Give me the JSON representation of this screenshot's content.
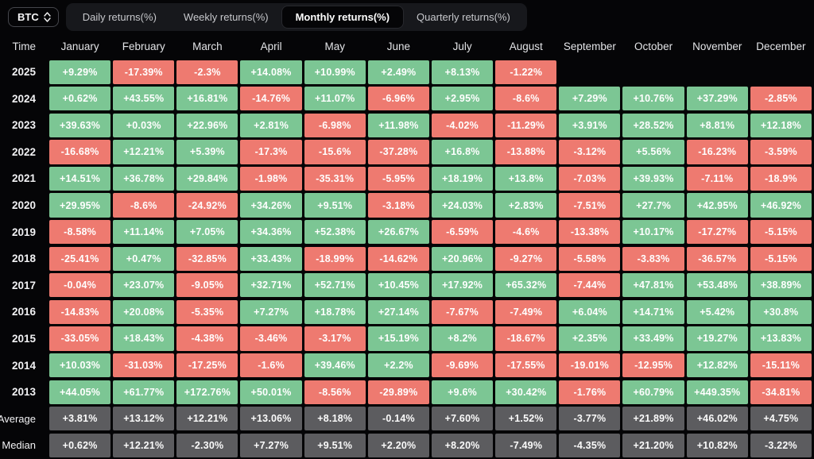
{
  "toolbar": {
    "symbol": "BTC",
    "tabs": [
      {
        "label": "Daily returns(%)",
        "active": false
      },
      {
        "label": "Weekly returns(%)",
        "active": false
      },
      {
        "label": "Monthly returns(%)",
        "active": true
      },
      {
        "label": "Quarterly returns(%)",
        "active": false
      }
    ]
  },
  "colors": {
    "positive": "#7cc694",
    "negative": "#ee7a70",
    "summary": "#5c5c5f"
  },
  "table": {
    "time_header": "Time",
    "months": [
      "January",
      "February",
      "March",
      "April",
      "May",
      "June",
      "July",
      "August",
      "September",
      "October",
      "November",
      "December"
    ],
    "rows": [
      {
        "label": "2025",
        "type": "year",
        "values": [
          "+9.29%",
          "-17.39%",
          "-2.3%",
          "+14.08%",
          "+10.99%",
          "+2.49%",
          "+8.13%",
          "-1.22%",
          "",
          "",
          "",
          ""
        ]
      },
      {
        "label": "2024",
        "type": "year",
        "values": [
          "+0.62%",
          "+43.55%",
          "+16.81%",
          "-14.76%",
          "+11.07%",
          "-6.96%",
          "+2.95%",
          "-8.6%",
          "+7.29%",
          "+10.76%",
          "+37.29%",
          "-2.85%"
        ]
      },
      {
        "label": "2023",
        "type": "year",
        "values": [
          "+39.63%",
          "+0.03%",
          "+22.96%",
          "+2.81%",
          "-6.98%",
          "+11.98%",
          "-4.02%",
          "-11.29%",
          "+3.91%",
          "+28.52%",
          "+8.81%",
          "+12.18%"
        ]
      },
      {
        "label": "2022",
        "type": "year",
        "values": [
          "-16.68%",
          "+12.21%",
          "+5.39%",
          "-17.3%",
          "-15.6%",
          "-37.28%",
          "+16.8%",
          "-13.88%",
          "-3.12%",
          "+5.56%",
          "-16.23%",
          "-3.59%"
        ]
      },
      {
        "label": "2021",
        "type": "year",
        "values": [
          "+14.51%",
          "+36.78%",
          "+29.84%",
          "-1.98%",
          "-35.31%",
          "-5.95%",
          "+18.19%",
          "+13.8%",
          "-7.03%",
          "+39.93%",
          "-7.11%",
          "-18.9%"
        ]
      },
      {
        "label": "2020",
        "type": "year",
        "values": [
          "+29.95%",
          "-8.6%",
          "-24.92%",
          "+34.26%",
          "+9.51%",
          "-3.18%",
          "+24.03%",
          "+2.83%",
          "-7.51%",
          "+27.7%",
          "+42.95%",
          "+46.92%"
        ]
      },
      {
        "label": "2019",
        "type": "year",
        "values": [
          "-8.58%",
          "+11.14%",
          "+7.05%",
          "+34.36%",
          "+52.38%",
          "+26.67%",
          "-6.59%",
          "-4.6%",
          "-13.38%",
          "+10.17%",
          "-17.27%",
          "-5.15%"
        ]
      },
      {
        "label": "2018",
        "type": "year",
        "values": [
          "-25.41%",
          "+0.47%",
          "-32.85%",
          "+33.43%",
          "-18.99%",
          "-14.62%",
          "+20.96%",
          "-9.27%",
          "-5.58%",
          "-3.83%",
          "-36.57%",
          "-5.15%"
        ]
      },
      {
        "label": "2017",
        "type": "year",
        "values": [
          "-0.04%",
          "+23.07%",
          "-9.05%",
          "+32.71%",
          "+52.71%",
          "+10.45%",
          "+17.92%",
          "+65.32%",
          "-7.44%",
          "+47.81%",
          "+53.48%",
          "+38.89%"
        ]
      },
      {
        "label": "2016",
        "type": "year",
        "values": [
          "-14.83%",
          "+20.08%",
          "-5.35%",
          "+7.27%",
          "+18.78%",
          "+27.14%",
          "-7.67%",
          "-7.49%",
          "+6.04%",
          "+14.71%",
          "+5.42%",
          "+30.8%"
        ]
      },
      {
        "label": "2015",
        "type": "year",
        "values": [
          "-33.05%",
          "+18.43%",
          "-4.38%",
          "-3.46%",
          "-3.17%",
          "+15.19%",
          "+8.2%",
          "-18.67%",
          "+2.35%",
          "+33.49%",
          "+19.27%",
          "+13.83%"
        ]
      },
      {
        "label": "2014",
        "type": "year",
        "values": [
          "+10.03%",
          "-31.03%",
          "-17.25%",
          "-1.6%",
          "+39.46%",
          "+2.2%",
          "-9.69%",
          "-17.55%",
          "-19.01%",
          "-12.95%",
          "+12.82%",
          "-15.11%"
        ]
      },
      {
        "label": "2013",
        "type": "year",
        "values": [
          "+44.05%",
          "+61.77%",
          "+172.76%",
          "+50.01%",
          "-8.56%",
          "-29.89%",
          "+9.6%",
          "+30.42%",
          "-1.76%",
          "+60.79%",
          "+449.35%",
          "-34.81%"
        ]
      },
      {
        "label": "Average",
        "type": "summary",
        "values": [
          "+3.81%",
          "+13.12%",
          "+12.21%",
          "+13.06%",
          "+8.18%",
          "-0.14%",
          "+7.60%",
          "+1.52%",
          "-3.77%",
          "+21.89%",
          "+46.02%",
          "+4.75%"
        ]
      },
      {
        "label": "Median",
        "type": "summary",
        "values": [
          "+0.62%",
          "+12.21%",
          "-2.30%",
          "+7.27%",
          "+9.51%",
          "+2.20%",
          "+8.20%",
          "-7.49%",
          "-4.35%",
          "+21.20%",
          "+10.82%",
          "-3.22%"
        ]
      }
    ]
  }
}
